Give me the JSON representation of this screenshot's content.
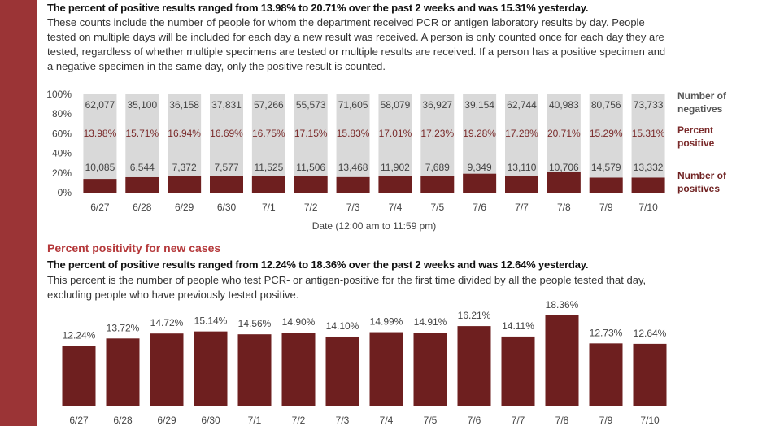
{
  "top_section": {
    "headline": "The percent of positive results ranged from 13.98% to 20.71% over the past 2 weeks and was 15.31% yesterday.",
    "description_lines": [
      "These counts include the number of people for whom the department received PCR or antigen laboratory results by day. People",
      "tested on multiple days will be included for each day a new result was received. A person is only counted once for each day they are",
      "tested, regardless of whether multiple specimens are tested or multiple results are received. If a person has a positive specimen and",
      "a negative specimen in the same day, only the positive result is counted."
    ]
  },
  "bottom_section": {
    "title": "Percent positivity for new cases",
    "headline": "The percent of positive results ranged from 12.24% to 18.36% over the past 2 weeks and was 12.64% yesterday.",
    "description_lines": [
      "This percent is the number of people who test PCR- or antigen-positive for the first time divided by all the people tested that day,",
      "excluding people who have previously tested positive."
    ]
  },
  "colors": {
    "negatives": "#d9d9d9",
    "positives": "#6e1f1f",
    "accent_strip": "#9b3436",
    "section_title": "#b5393b"
  },
  "chart_data": [
    {
      "type": "bar",
      "stacked": true,
      "normalized": true,
      "categories": [
        "6/27",
        "6/28",
        "6/29",
        "6/30",
        "7/1",
        "7/2",
        "7/3",
        "7/4",
        "7/5",
        "7/6",
        "7/7",
        "7/8",
        "7/9",
        "7/10"
      ],
      "series": [
        {
          "name": "Number of positives",
          "values": [
            10085,
            6544,
            7372,
            7577,
            11525,
            11506,
            13468,
            11902,
            7689,
            9349,
            13110,
            10706,
            14579,
            13332
          ]
        },
        {
          "name": "Number of negatives",
          "values": [
            62077,
            35100,
            36158,
            37831,
            57266,
            55573,
            71605,
            58079,
            36927,
            39154,
            62744,
            40983,
            80756,
            73733
          ]
        }
      ],
      "percent_positive_labels": [
        "13.98%",
        "15.71%",
        "16.94%",
        "16.69%",
        "16.75%",
        "17.15%",
        "15.83%",
        "17.01%",
        "17.23%",
        "19.28%",
        "17.28%",
        "20.71%",
        "15.29%",
        "15.31%"
      ],
      "percent_positive_name": "Percent positive",
      "positive_labels": [
        "10,085",
        "6,544",
        "7,372",
        "7,577",
        "11,525",
        "11,506",
        "13,468",
        "11,902",
        "7,689",
        "9,349",
        "13,110",
        "10,706",
        "14,579",
        "13,332"
      ],
      "negative_labels": [
        "62,077",
        "35,100",
        "36,158",
        "37,831",
        "57,266",
        "55,573",
        "71,605",
        "58,079",
        "36,927",
        "39,154",
        "62,744",
        "40,983",
        "80,756",
        "73,733"
      ],
      "y_ticks": [
        "100%",
        "80%",
        "60%",
        "40%",
        "20%",
        "0%"
      ],
      "ylim": [
        0,
        100
      ],
      "xlabel": "Date (12:00 am to 11:59 pm)",
      "legend": [
        "Number of negatives",
        "Percent positive",
        "Number of positives"
      ],
      "legend_placement": "right"
    },
    {
      "type": "bar",
      "categories": [
        "6/27",
        "6/28",
        "6/29",
        "6/30",
        "7/1",
        "7/2",
        "7/3",
        "7/4",
        "7/5",
        "7/6",
        "7/7",
        "7/8",
        "7/9",
        "7/10"
      ],
      "values": [
        12.24,
        13.72,
        14.72,
        15.14,
        14.56,
        14.9,
        14.1,
        14.99,
        14.91,
        16.21,
        14.11,
        18.36,
        12.73,
        12.64
      ],
      "value_labels": [
        "12.24%",
        "13.72%",
        "14.72%",
        "15.14%",
        "14.56%",
        "14.90%",
        "14.10%",
        "14.99%",
        "14.91%",
        "16.21%",
        "14.11%",
        "18.36%",
        "12.73%",
        "12.64%"
      ],
      "ylim": [
        0,
        20
      ]
    }
  ]
}
